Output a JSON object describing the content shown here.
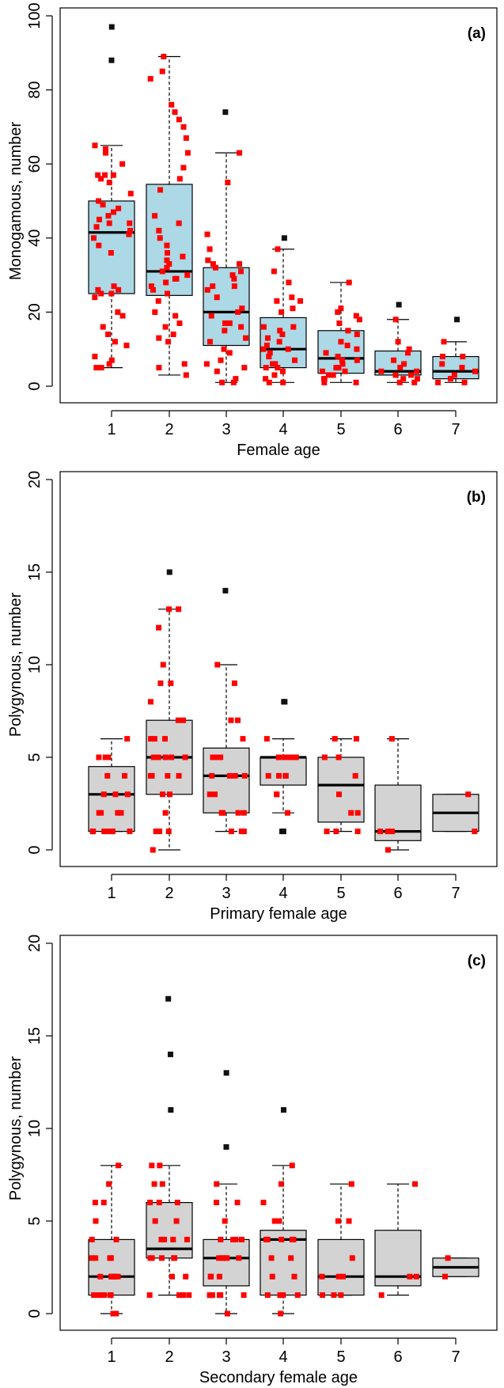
{
  "chart_data": [
    {
      "type": "box",
      "panel_label": "(a)",
      "xlabel": "Female age",
      "ylabel": "Monogamous, number",
      "ylim": [
        0,
        100
      ],
      "yticks": [
        0,
        20,
        40,
        60,
        80,
        100
      ],
      "categories": [
        "1",
        "2",
        "3",
        "4",
        "5",
        "6",
        "7"
      ],
      "box_color": "#add8e6",
      "point_color": "#ff0000",
      "boxes": [
        {
          "category": "1",
          "whisker_low": 5,
          "q1": 25,
          "median": 41.5,
          "q3": 50,
          "whisker_high": 65,
          "outliers": [
            88,
            97
          ],
          "points": [
            5,
            5,
            6,
            7,
            8,
            11,
            12,
            14,
            16,
            19,
            20,
            24,
            25,
            25,
            26,
            26,
            27,
            36,
            38,
            40,
            41,
            42,
            43,
            44,
            44,
            45,
            46,
            47,
            48,
            49,
            50,
            52,
            55,
            56,
            57,
            57,
            57,
            60,
            63,
            64,
            65
          ]
        },
        {
          "category": "2",
          "whisker_low": 3,
          "q1": 24.5,
          "median": 31,
          "q3": 54.5,
          "whisker_high": 89,
          "points": [
            3,
            5,
            6,
            12,
            13,
            14,
            16,
            17,
            19,
            20,
            23,
            25,
            26,
            27,
            28,
            29,
            29,
            30,
            31,
            32,
            33,
            34,
            35,
            36,
            38,
            40,
            42,
            44,
            46,
            53,
            56,
            59,
            63,
            67,
            70,
            72,
            74,
            76,
            83,
            85,
            89
          ]
        },
        {
          "category": "3",
          "whisker_low": 1,
          "q1": 11,
          "median": 20,
          "q3": 32,
          "whisker_high": 63,
          "outliers": [
            74
          ],
          "points": [
            1,
            1,
            2,
            4,
            5,
            6,
            7,
            9,
            10,
            12,
            13,
            15,
            16,
            17,
            17,
            19,
            20,
            21,
            24,
            26,
            27,
            27,
            29,
            30,
            31,
            32,
            33,
            33,
            34,
            37,
            41,
            55,
            63
          ]
        },
        {
          "category": "4",
          "whisker_low": 1,
          "q1": 5,
          "median": 10,
          "q3": 18.5,
          "whisker_high": 37,
          "outliers": [
            40
          ],
          "points": [
            1,
            1,
            2,
            3,
            4,
            5,
            5,
            6,
            6,
            7,
            8,
            9,
            10,
            10,
            11,
            12,
            13,
            14,
            15,
            16,
            16,
            20,
            21,
            23,
            23,
            24,
            28,
            31,
            37
          ]
        },
        {
          "category": "5",
          "whisker_low": 1,
          "q1": 3.5,
          "median": 7.5,
          "q3": 15,
          "whisker_high": 28,
          "points": [
            1,
            1,
            2,
            2,
            3,
            3,
            4,
            4,
            5,
            5,
            6,
            7,
            7,
            8,
            9,
            10,
            11,
            12,
            14,
            15,
            17,
            18,
            19,
            20,
            21,
            28
          ]
        },
        {
          "category": "6",
          "whisker_low": 1,
          "q1": 3,
          "median": 4,
          "q3": 9.5,
          "whisker_high": 18,
          "outliers": [
            22
          ],
          "points": [
            1,
            1,
            2,
            2,
            3,
            3,
            4,
            4,
            5,
            6,
            7,
            9,
            10,
            12,
            18
          ]
        },
        {
          "category": "7",
          "whisker_low": 1,
          "q1": 2,
          "median": 4,
          "q3": 8,
          "whisker_high": 12,
          "outliers": [
            18
          ],
          "points": [
            1,
            1,
            2,
            3,
            4,
            5,
            6,
            8,
            8,
            12
          ]
        }
      ]
    },
    {
      "type": "box",
      "panel_label": "(b)",
      "xlabel": "Primary female age",
      "ylabel": "Polygynous, number",
      "ylim": [
        0,
        20
      ],
      "yticks": [
        0,
        5,
        10,
        15,
        20
      ],
      "categories": [
        "1",
        "2",
        "3",
        "4",
        "5",
        "6",
        "7"
      ],
      "box_color": "#d3d3d3",
      "point_color": "#ff0000",
      "boxes": [
        {
          "category": "1",
          "whisker_low": 1,
          "q1": 1,
          "median": 3,
          "q3": 4.5,
          "whisker_high": 6,
          "points": [
            1,
            1,
            1,
            1,
            1,
            1,
            1,
            2,
            2,
            2,
            2,
            3,
            3,
            3,
            4,
            4,
            5,
            5,
            5,
            6
          ]
        },
        {
          "category": "2",
          "whisker_low": 0,
          "q1": 3,
          "median": 5,
          "q3": 7,
          "whisker_high": 13,
          "outliers": [
            15
          ],
          "points": [
            0,
            1,
            1,
            1,
            2,
            3,
            3,
            4,
            4,
            4,
            4,
            5,
            5,
            5,
            5,
            5,
            6,
            6,
            6,
            7,
            7,
            8,
            9,
            9,
            10,
            12,
            13,
            13
          ]
        },
        {
          "category": "3",
          "whisker_low": 1,
          "q1": 2,
          "median": 4,
          "q3": 5.5,
          "whisker_high": 10,
          "outliers": [
            14
          ],
          "points": [
            1,
            1,
            1,
            2,
            2,
            2,
            2,
            3,
            3,
            4,
            4,
            4,
            4,
            5,
            5,
            5,
            5,
            6,
            7,
            7,
            9,
            10
          ]
        },
        {
          "category": "4",
          "whisker_low": 2,
          "q1": 3.5,
          "median": 5,
          "q3": 5,
          "whisker_high": 6,
          "outliers": [
            1,
            1,
            8,
            8
          ],
          "points": [
            2,
            3,
            3,
            4,
            4,
            4,
            4,
            5,
            5,
            5,
            5,
            5,
            5,
            6
          ]
        },
        {
          "category": "5",
          "whisker_low": 1,
          "q1": 1.5,
          "median": 3.5,
          "q3": 5,
          "whisker_high": 6,
          "points": [
            1,
            1,
            1,
            2,
            2,
            3,
            4,
            5,
            5,
            6,
            6
          ]
        },
        {
          "category": "6",
          "whisker_low": 0,
          "q1": 0.5,
          "median": 1,
          "q3": 3.5,
          "whisker_high": 6,
          "points": [
            0,
            1,
            1,
            1,
            6
          ]
        },
        {
          "category": "7",
          "whisker_low": 1,
          "q1": 1,
          "median": 2,
          "q3": 3,
          "whisker_high": 3,
          "points": [
            1,
            3
          ]
        }
      ]
    },
    {
      "type": "box",
      "panel_label": "(c)",
      "xlabel": "Secondary female age",
      "ylabel": "Polygynous, number",
      "ylim": [
        0,
        20
      ],
      "yticks": [
        0,
        5,
        10,
        15,
        20
      ],
      "categories": [
        "1",
        "2",
        "3",
        "4",
        "5",
        "6",
        "7"
      ],
      "box_color": "#d3d3d3",
      "point_color": "#ff0000",
      "boxes": [
        {
          "category": "1",
          "whisker_low": 0,
          "q1": 1,
          "median": 2,
          "q3": 4,
          "whisker_high": 8,
          "points": [
            0,
            0,
            1,
            1,
            1,
            1,
            1,
            1,
            2,
            2,
            2,
            2,
            2,
            2,
            3,
            3,
            3,
            3,
            4,
            4,
            5,
            6,
            6,
            7,
            8
          ]
        },
        {
          "category": "2",
          "whisker_low": 1,
          "q1": 3,
          "median": 3.5,
          "q3": 6,
          "whisker_high": 8,
          "outliers": [
            11,
            14,
            17
          ],
          "points": [
            1,
            1,
            1,
            1,
            1,
            2,
            2,
            3,
            3,
            3,
            3,
            3,
            4,
            4,
            4,
            4,
            5,
            5,
            6,
            6,
            6,
            7,
            7,
            8,
            8
          ]
        },
        {
          "category": "3",
          "whisker_low": 0,
          "q1": 1.5,
          "median": 3,
          "q3": 4,
          "whisker_high": 7,
          "outliers": [
            9,
            13
          ],
          "points": [
            0,
            1,
            1,
            1,
            1,
            1,
            1,
            1,
            2,
            2,
            2,
            3,
            3,
            3,
            3,
            3,
            4,
            4,
            4,
            4,
            5,
            6,
            6,
            7
          ]
        },
        {
          "category": "4",
          "whisker_low": 0,
          "q1": 1,
          "median": 4,
          "q3": 4.5,
          "whisker_high": 8,
          "outliers": [
            11
          ],
          "points": [
            0,
            1,
            1,
            1,
            1,
            1,
            2,
            2,
            3,
            3,
            4,
            4,
            4,
            4,
            4,
            5,
            5,
            6,
            7,
            8
          ]
        },
        {
          "category": "5",
          "whisker_low": 1,
          "q1": 1,
          "median": 2,
          "q3": 4,
          "whisker_high": 7,
          "points": [
            1,
            1,
            1,
            2,
            2,
            2,
            3,
            5,
            5,
            7
          ]
        },
        {
          "category": "6",
          "whisker_low": 1,
          "q1": 1.5,
          "median": 2,
          "q3": 4.5,
          "whisker_high": 7,
          "points": [
            1,
            2,
            2,
            7
          ]
        },
        {
          "category": "7",
          "whisker_low": 2,
          "q1": 2,
          "median": 2.5,
          "q3": 3,
          "whisker_high": 3,
          "points": [
            2,
            3
          ]
        }
      ]
    }
  ]
}
